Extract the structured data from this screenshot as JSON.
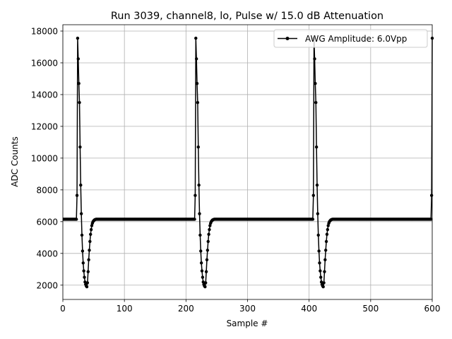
{
  "chart_data": {
    "type": "line",
    "title": "Run 3039, channel8, lo, Pulse w/ 15.0 dB Attenuation",
    "xlabel": "Sample #",
    "ylabel": "ADC Counts",
    "xlim": [
      0,
      600
    ],
    "ylim": [
      1100,
      18400
    ],
    "xticks": [
      0,
      100,
      200,
      300,
      400,
      500,
      600
    ],
    "yticks": [
      2000,
      4000,
      6000,
      8000,
      10000,
      12000,
      14000,
      16000,
      18000
    ],
    "grid": true,
    "legend_position": "top-right",
    "series": [
      {
        "name": "AWG Amplitude: 6.0Vpp",
        "color": "#000000",
        "marker": "circle",
        "period": 192,
        "samples": 601,
        "baseline": 6150,
        "pulse_start": 22,
        "pulse_values": [
          6150,
          7650,
          17550,
          16250,
          14700,
          13500,
          10700,
          8300,
          6500,
          5150,
          4150,
          3400,
          2900,
          2500,
          2200,
          2050,
          1950,
          1900,
          2150,
          2850,
          3600,
          4200,
          4750,
          5200,
          5500,
          5750,
          5900,
          6000,
          6050,
          6100,
          6120,
          6140
        ]
      }
    ]
  }
}
